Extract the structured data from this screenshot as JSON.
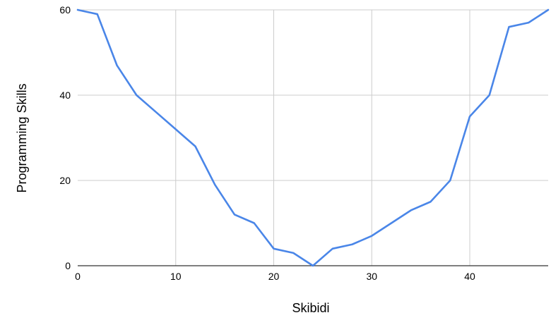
{
  "chart_data": {
    "type": "line",
    "title": "",
    "xlabel": "Skibidi",
    "ylabel": "Programming Skills",
    "xlim": [
      0,
      48
    ],
    "ylim": [
      0,
      60
    ],
    "x_ticks": [
      0,
      10,
      20,
      30,
      40
    ],
    "y_ticks": [
      0,
      20,
      40,
      60
    ],
    "grid": true,
    "legend": "none",
    "colors": {
      "line": "#4a86e8",
      "grid": "#cccccc",
      "axis": "#333333"
    },
    "series": [
      {
        "x": [
          0,
          2,
          4,
          6,
          8,
          10,
          12,
          14,
          16,
          18,
          20,
          22,
          24,
          26,
          28,
          30,
          32,
          34,
          36,
          38,
          40,
          42,
          44,
          46,
          48
        ],
        "y": [
          60,
          59,
          47,
          40,
          36,
          32,
          28,
          19,
          12,
          10,
          4,
          3,
          0,
          4,
          5,
          7,
          10,
          13,
          15,
          20,
          35,
          40,
          56,
          57,
          60
        ]
      }
    ]
  }
}
